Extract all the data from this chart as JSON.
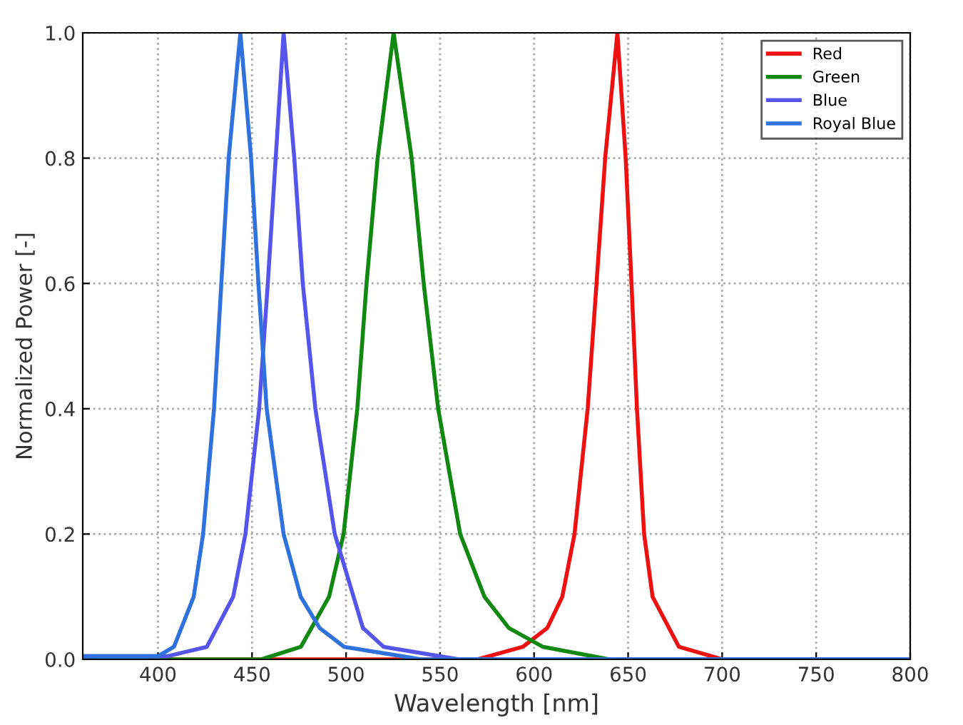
{
  "chart_data": {
    "type": "line",
    "xlabel": "Wavelength [nm]",
    "ylabel": "Normalized Power [-]",
    "xlim": [
      360,
      800
    ],
    "xticks": [
      400,
      450,
      500,
      550,
      600,
      650,
      700,
      750,
      800
    ],
    "ylim": [
      0,
      1.0
    ],
    "yticks": [
      {
        "value": 0,
        "label": "0.0"
      },
      {
        "value": 0.2,
        "label": "0.2"
      },
      {
        "value": 0.4,
        "label": "0.4"
      },
      {
        "value": 0.6,
        "label": "0.6"
      },
      {
        "value": 0.8,
        "label": "0.8"
      },
      {
        "value": 1.0,
        "label": "1.0"
      }
    ],
    "grid": true,
    "legend": "top right",
    "marker": "none",
    "line_style": "solid",
    "series": [
      {
        "name": "Red",
        "color": "#ee1111",
        "x": [
          360,
          570,
          594,
          607,
          615,
          621.5,
          628.5,
          633.2,
          637.8,
          644.3,
          648.7,
          651.8,
          654.7,
          658.5,
          663,
          677,
          700,
          800
        ],
        "values": [
          0,
          0,
          0.02,
          0.05,
          0.1,
          0.2,
          0.4,
          0.6,
          0.8,
          1.0,
          0.8,
          0.6,
          0.4,
          0.2,
          0.1,
          0.02,
          0,
          0
        ]
      },
      {
        "name": "Green",
        "color": "#118811",
        "x": [
          360,
          455,
          476,
          491,
          498.7,
          506,
          510.9,
          516.8,
          525.3,
          534.9,
          541.3,
          549,
          560.7,
          573.6,
          586.6,
          604.6,
          640,
          800
        ],
        "values": [
          0,
          0,
          0.02,
          0.1,
          0.2,
          0.4,
          0.6,
          0.8,
          1.0,
          0.8,
          0.6,
          0.4,
          0.2,
          0.1,
          0.05,
          0.02,
          0,
          0
        ]
      },
      {
        "name": "Blue",
        "color": "#5555ee",
        "x": [
          360,
          405,
          426,
          440,
          446.5,
          453.8,
          458.4,
          462.6,
          466.8,
          472.5,
          477,
          483.7,
          494,
          504,
          509,
          520,
          560,
          800
        ],
        "values": [
          0.005,
          0.005,
          0.02,
          0.1,
          0.2,
          0.4,
          0.6,
          0.8,
          1.0,
          0.8,
          0.6,
          0.4,
          0.2,
          0.1,
          0.05,
          0.02,
          0,
          0
        ]
      },
      {
        "name": "Royal Blue",
        "color": "#2f72dd",
        "x": [
          360,
          400,
          408.5,
          419,
          424,
          429.8,
          433.7,
          437.6,
          443.8,
          449.5,
          453.4,
          457.8,
          466.8,
          475.9,
          486,
          499,
          540,
          800
        ],
        "values": [
          0.005,
          0.005,
          0.02,
          0.1,
          0.2,
          0.4,
          0.6,
          0.8,
          1.0,
          0.8,
          0.6,
          0.4,
          0.2,
          0.1,
          0.05,
          0.02,
          0,
          0
        ]
      }
    ]
  }
}
